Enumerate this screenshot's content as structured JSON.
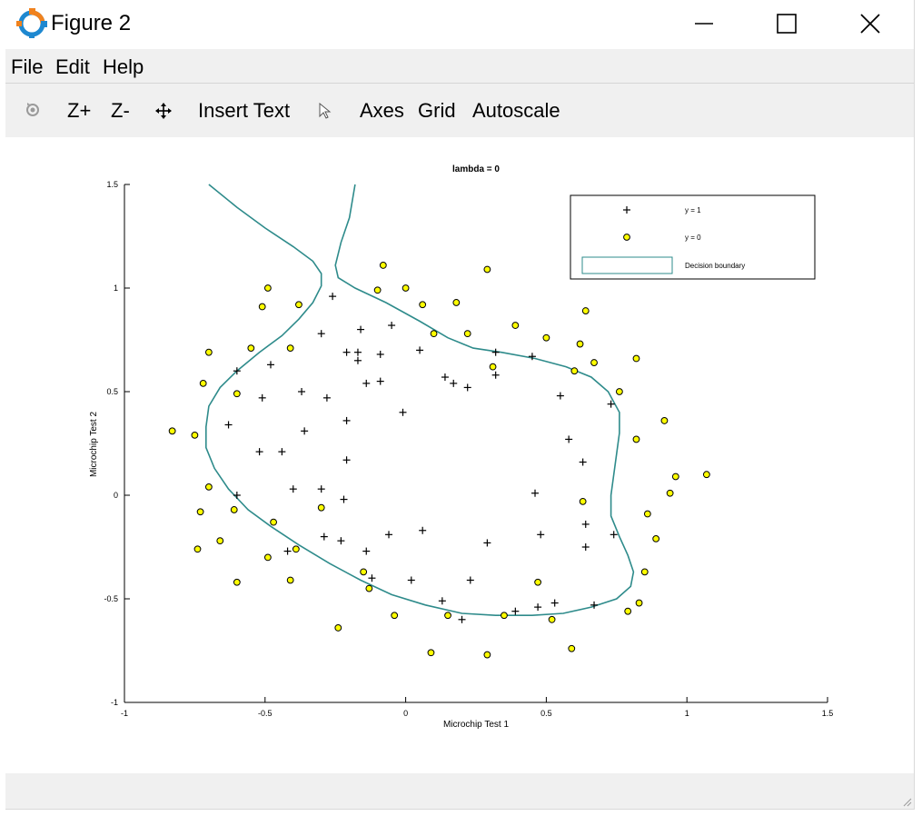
{
  "window": {
    "title": "Figure 2"
  },
  "menu": {
    "items": [
      "File",
      "Edit",
      "Help"
    ]
  },
  "toolbar": {
    "zoom_in": "Z+",
    "zoom_out": "Z-",
    "insert_text": "Insert Text",
    "axes": "Axes",
    "grid": "Grid",
    "autoscale": "Autoscale"
  },
  "colors": {
    "boundary": "#2e8b8b",
    "negative_fill": "#ffff00",
    "background": "#f0f0f0"
  },
  "chart_data": {
    "type": "scatter",
    "title": "lambda = 0",
    "xlabel": "Microchip Test 1",
    "ylabel": "Microchip Test 2",
    "xlim": [
      -1,
      1.5
    ],
    "ylim": [
      -1,
      1.5
    ],
    "xticks": [
      "-1",
      "-0.5",
      "0",
      "0.5",
      "1",
      "1.5"
    ],
    "yticks": [
      "-1",
      "-0.5",
      "0",
      "0.5",
      "1",
      "1.5"
    ],
    "legend": {
      "placement": "top-right",
      "entries": [
        {
          "label": "y = 1",
          "marker": "plus"
        },
        {
          "label": "y = 0",
          "marker": "circle"
        },
        {
          "label": "Decision boundary",
          "marker": "line"
        }
      ]
    },
    "series": [
      {
        "name": "y = 1",
        "points": [
          [
            -0.26,
            0.96
          ],
          [
            -0.3,
            0.78
          ],
          [
            -0.16,
            0.8
          ],
          [
            -0.05,
            0.82
          ],
          [
            -0.21,
            0.69
          ],
          [
            -0.17,
            0.69
          ],
          [
            -0.09,
            0.68
          ],
          [
            -0.17,
            0.65
          ],
          [
            0.05,
            0.7
          ],
          [
            0.32,
            0.69
          ],
          [
            0.45,
            0.67
          ],
          [
            -0.6,
            0.6
          ],
          [
            -0.48,
            0.63
          ],
          [
            -0.51,
            0.47
          ],
          [
            -0.37,
            0.5
          ],
          [
            -0.28,
            0.47
          ],
          [
            -0.14,
            0.54
          ],
          [
            -0.09,
            0.55
          ],
          [
            0.14,
            0.57
          ],
          [
            0.17,
            0.54
          ],
          [
            0.22,
            0.52
          ],
          [
            0.32,
            0.58
          ],
          [
            0.55,
            0.48
          ],
          [
            0.73,
            0.44
          ],
          [
            -0.63,
            0.34
          ],
          [
            -0.21,
            0.36
          ],
          [
            -0.36,
            0.31
          ],
          [
            -0.01,
            0.4
          ],
          [
            -0.52,
            0.21
          ],
          [
            -0.44,
            0.21
          ],
          [
            -0.21,
            0.17
          ],
          [
            0.58,
            0.27
          ],
          [
            0.63,
            0.16
          ],
          [
            -0.4,
            0.03
          ],
          [
            -0.3,
            0.03
          ],
          [
            -0.6,
            0.0
          ],
          [
            -0.22,
            -0.02
          ],
          [
            0.46,
            0.01
          ],
          [
            0.06,
            -0.17
          ],
          [
            -0.06,
            -0.19
          ],
          [
            -0.29,
            -0.2
          ],
          [
            -0.23,
            -0.22
          ],
          [
            0.29,
            -0.23
          ],
          [
            0.48,
            -0.19
          ],
          [
            0.64,
            -0.14
          ],
          [
            0.74,
            -0.19
          ],
          [
            -0.42,
            -0.27
          ],
          [
            -0.14,
            -0.27
          ],
          [
            0.64,
            -0.25
          ],
          [
            -0.12,
            -0.4
          ],
          [
            0.02,
            -0.41
          ],
          [
            0.23,
            -0.41
          ],
          [
            0.13,
            -0.51
          ],
          [
            0.2,
            -0.6
          ],
          [
            0.39,
            -0.56
          ],
          [
            0.47,
            -0.54
          ],
          [
            0.53,
            -0.52
          ],
          [
            0.67,
            -0.53
          ]
        ]
      },
      {
        "name": "y = 0",
        "points": [
          [
            -0.08,
            1.11
          ],
          [
            0.29,
            1.09
          ],
          [
            -0.49,
            1.0
          ],
          [
            -0.1,
            0.99
          ],
          [
            0.0,
            1.0
          ],
          [
            -0.51,
            0.91
          ],
          [
            -0.38,
            0.92
          ],
          [
            0.06,
            0.92
          ],
          [
            0.18,
            0.93
          ],
          [
            0.64,
            0.89
          ],
          [
            0.39,
            0.82
          ],
          [
            -0.55,
            0.71
          ],
          [
            -0.41,
            0.71
          ],
          [
            -0.7,
            0.69
          ],
          [
            0.1,
            0.78
          ],
          [
            0.22,
            0.78
          ],
          [
            0.5,
            0.76
          ],
          [
            0.62,
            0.73
          ],
          [
            0.67,
            0.64
          ],
          [
            0.82,
            0.66
          ],
          [
            -0.72,
            0.54
          ],
          [
            -0.6,
            0.49
          ],
          [
            0.31,
            0.62
          ],
          [
            0.6,
            0.6
          ],
          [
            0.76,
            0.5
          ],
          [
            0.92,
            0.36
          ],
          [
            -0.83,
            0.31
          ],
          [
            -0.75,
            0.29
          ],
          [
            0.82,
            0.27
          ],
          [
            0.96,
            0.09
          ],
          [
            1.07,
            0.1
          ],
          [
            -0.7,
            0.04
          ],
          [
            0.94,
            0.01
          ],
          [
            0.63,
            -0.03
          ],
          [
            -0.3,
            -0.06
          ],
          [
            -0.73,
            -0.08
          ],
          [
            -0.61,
            -0.07
          ],
          [
            0.86,
            -0.09
          ],
          [
            -0.47,
            -0.13
          ],
          [
            -0.66,
            -0.22
          ],
          [
            0.89,
            -0.21
          ],
          [
            -0.74,
            -0.26
          ],
          [
            -0.39,
            -0.26
          ],
          [
            -0.49,
            -0.3
          ],
          [
            -0.15,
            -0.37
          ],
          [
            0.85,
            -0.37
          ],
          [
            -0.41,
            -0.41
          ],
          [
            -0.6,
            -0.42
          ],
          [
            0.47,
            -0.42
          ],
          [
            -0.13,
            -0.45
          ],
          [
            0.83,
            -0.52
          ],
          [
            0.79,
            -0.56
          ],
          [
            -0.04,
            -0.58
          ],
          [
            0.15,
            -0.58
          ],
          [
            0.35,
            -0.58
          ],
          [
            0.52,
            -0.6
          ],
          [
            -0.24,
            -0.64
          ],
          [
            0.59,
            -0.74
          ],
          [
            0.09,
            -0.76
          ],
          [
            0.29,
            -0.77
          ]
        ]
      },
      {
        "name": "Decision boundary",
        "line": [
          [
            -0.7,
            1.5
          ],
          [
            -0.6,
            1.39
          ],
          [
            -0.5,
            1.29
          ],
          [
            -0.4,
            1.2
          ],
          [
            -0.33,
            1.13
          ],
          [
            -0.3,
            1.07
          ],
          [
            -0.3,
            1.01
          ],
          [
            -0.33,
            0.93
          ],
          [
            -0.38,
            0.85
          ],
          [
            -0.44,
            0.77
          ],
          [
            -0.52,
            0.69
          ],
          [
            -0.6,
            0.6
          ],
          [
            -0.66,
            0.52
          ],
          [
            -0.7,
            0.43
          ],
          [
            -0.71,
            0.33
          ],
          [
            -0.71,
            0.23
          ],
          [
            -0.68,
            0.13
          ],
          [
            -0.63,
            0.03
          ],
          [
            -0.56,
            -0.07
          ],
          [
            -0.48,
            -0.15
          ],
          [
            -0.38,
            -0.24
          ],
          [
            -0.27,
            -0.33
          ],
          [
            -0.16,
            -0.41
          ],
          [
            -0.05,
            -0.48
          ],
          [
            0.07,
            -0.53
          ],
          [
            0.2,
            -0.57
          ],
          [
            0.32,
            -0.58
          ],
          [
            0.45,
            -0.58
          ],
          [
            0.56,
            -0.57
          ],
          [
            0.66,
            -0.54
          ],
          [
            0.75,
            -0.5
          ],
          [
            0.8,
            -0.44
          ],
          [
            0.81,
            -0.37
          ],
          [
            0.79,
            -0.29
          ],
          [
            0.76,
            -0.2
          ],
          [
            0.73,
            -0.1
          ],
          [
            0.73,
            0.0
          ],
          [
            0.74,
            0.1
          ],
          [
            0.75,
            0.2
          ],
          [
            0.76,
            0.3
          ],
          [
            0.76,
            0.4
          ],
          [
            0.72,
            0.5
          ],
          [
            0.66,
            0.57
          ],
          [
            0.57,
            0.62
          ],
          [
            0.46,
            0.66
          ],
          [
            0.34,
            0.69
          ],
          [
            0.24,
            0.71
          ],
          [
            0.15,
            0.76
          ],
          [
            0.05,
            0.84
          ],
          [
            -0.07,
            0.93
          ],
          [
            -0.18,
            1.0
          ],
          [
            -0.24,
            1.05
          ],
          [
            -0.25,
            1.11
          ],
          [
            -0.23,
            1.22
          ],
          [
            -0.2,
            1.34
          ],
          [
            -0.18,
            1.5
          ]
        ]
      }
    ]
  }
}
